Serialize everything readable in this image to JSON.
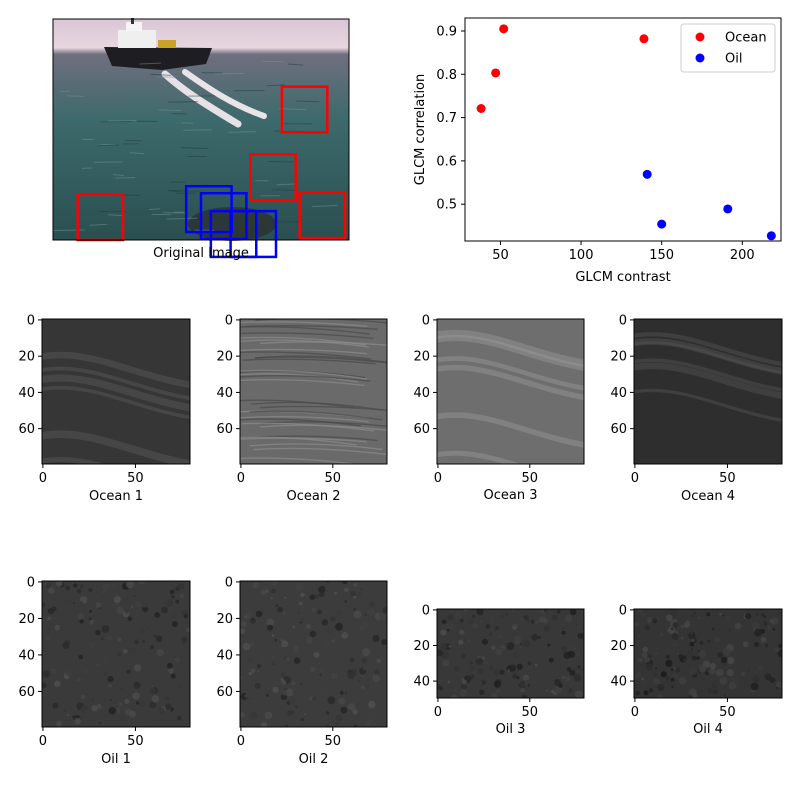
{
  "chart_data": [
    {
      "type": "image",
      "xlabel": "Original Image",
      "regions": {
        "ocean": [
          {
            "x": 232,
            "y": 68
          },
          {
            "x": 200,
            "y": 136
          },
          {
            "x": 250,
            "y": 174
          },
          {
            "x": 25,
            "y": 176
          }
        ],
        "oil": [
          {
            "x": 135,
            "y": 168
          },
          {
            "x": 150,
            "y": 175
          },
          {
            "x": 160,
            "y": 193
          },
          {
            "x": 180,
            "y": 193
          }
        ],
        "box_size": 46,
        "image_width": 300,
        "image_height": 222
      },
      "colors": {
        "ocean": "#ff0000",
        "oil": "#0000ff"
      }
    },
    {
      "type": "scatter",
      "xlabel": "GLCM contrast",
      "ylabel": "GLCM correlation",
      "xlim": [
        28,
        224
      ],
      "ylim": [
        0.415,
        0.93
      ],
      "xticks": [
        50,
        100,
        150,
        200
      ],
      "yticks": [
        0.5,
        0.6,
        0.7,
        0.8,
        0.9
      ],
      "ytick_labels": [
        "0.5",
        "0.6",
        "0.7",
        "0.8",
        "0.9"
      ],
      "legend": "top-right",
      "series": [
        {
          "name": "Ocean",
          "color": "#ff0000",
          "x": [
            52,
            47,
            38,
            139
          ],
          "y": [
            0.905,
            0.803,
            0.721,
            0.882
          ]
        },
        {
          "name": "Oil",
          "color": "#0000ff",
          "x": [
            141,
            150,
            191,
            218
          ],
          "y": [
            0.569,
            0.454,
            0.489,
            0.427
          ]
        }
      ]
    },
    {
      "type": "image",
      "xlabel": "Ocean 1",
      "rows": 80,
      "cols": 80,
      "xticks": [
        0,
        50
      ],
      "yticks": [
        0,
        20,
        40,
        60
      ],
      "base": "#363636",
      "highlight": "#5a5a5a",
      "texture": "smooth"
    },
    {
      "type": "image",
      "xlabel": "Ocean 2",
      "rows": 80,
      "cols": 80,
      "xticks": [
        0,
        50
      ],
      "yticks": [
        0,
        20,
        40,
        60
      ],
      "base": "#6a6a6a",
      "highlight": "#8c8c8c",
      "texture": "ripples"
    },
    {
      "type": "image",
      "xlabel": "Ocean 3",
      "rows": 80,
      "cols": 80,
      "xticks": [
        0,
        50
      ],
      "yticks": [
        0,
        20,
        40,
        60
      ],
      "base": "#6e6e6e",
      "highlight": "#9a9a9a",
      "texture": "smooth"
    },
    {
      "type": "image",
      "xlabel": "Ocean 4",
      "rows": 80,
      "cols": 80,
      "xticks": [
        0,
        50
      ],
      "yticks": [
        0,
        20,
        40,
        60
      ],
      "base": "#2e2e2e",
      "highlight": "#555555",
      "texture": "smooth"
    },
    {
      "type": "image",
      "xlabel": "Oil 1",
      "rows": 80,
      "cols": 80,
      "xticks": [
        0,
        50
      ],
      "yticks": [
        0,
        20,
        40,
        60
      ],
      "base": "#3a3a3a",
      "highlight": "#5e5e5e",
      "texture": "speckle"
    },
    {
      "type": "image",
      "xlabel": "Oil 2",
      "rows": 80,
      "cols": 80,
      "xticks": [
        0,
        50
      ],
      "yticks": [
        0,
        20,
        40,
        60
      ],
      "base": "#3c3c3c",
      "highlight": "#606060",
      "texture": "speckle"
    },
    {
      "type": "image",
      "xlabel": "Oil 3",
      "rows": 50,
      "cols": 80,
      "xticks": [
        0,
        50
      ],
      "yticks": [
        0,
        20,
        40
      ],
      "base": "#383838",
      "highlight": "#555555",
      "texture": "speckle"
    },
    {
      "type": "image",
      "xlabel": "Oil 4",
      "rows": 50,
      "cols": 80,
      "xticks": [
        0,
        50
      ],
      "yticks": [
        0,
        20,
        40
      ],
      "base": "#343434",
      "highlight": "#505050",
      "texture": "speckle"
    }
  ]
}
